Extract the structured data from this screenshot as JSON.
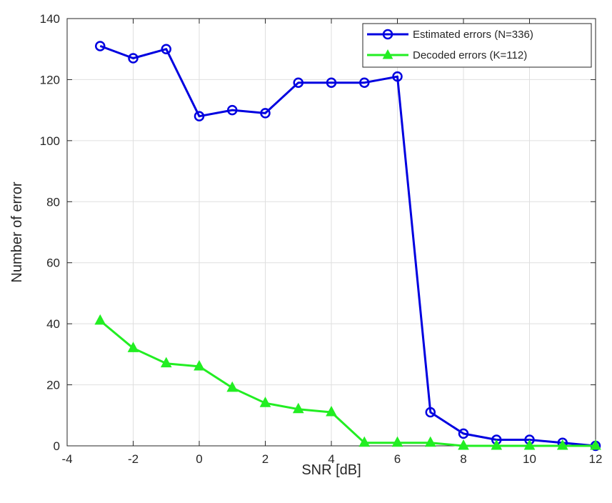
{
  "chart_data": {
    "type": "line",
    "title": "",
    "xlabel": "SNR [dB]",
    "ylabel": "Number of error",
    "xlim": [
      -4,
      12
    ],
    "ylim": [
      0,
      140
    ],
    "xticks": [
      "-4",
      "-2",
      "0",
      "2",
      "4",
      "6",
      "8",
      "10",
      "12"
    ],
    "yticks": [
      "0",
      "20",
      "40",
      "60",
      "80",
      "100",
      "120",
      "140"
    ],
    "grid": true,
    "legend_position": "top-right",
    "x": [
      -3,
      -2,
      -1,
      0,
      1,
      2,
      3,
      4,
      5,
      6,
      7,
      8,
      9,
      10,
      11,
      12
    ],
    "series": [
      {
        "name": "Estimated errors (N=336)",
        "color": "#0000e0",
        "marker": "circle",
        "values": [
          131,
          127,
          130,
          108,
          110,
          109,
          119,
          119,
          119,
          121,
          11,
          4,
          2,
          2,
          1,
          0
        ]
      },
      {
        "name": "Decoded errors (K=112)",
        "color": "#22ee22",
        "marker": "triangle",
        "values": [
          41,
          32,
          27,
          26,
          19,
          14,
          12,
          11,
          1,
          1,
          1,
          0,
          0,
          0,
          0,
          0
        ]
      }
    ]
  }
}
